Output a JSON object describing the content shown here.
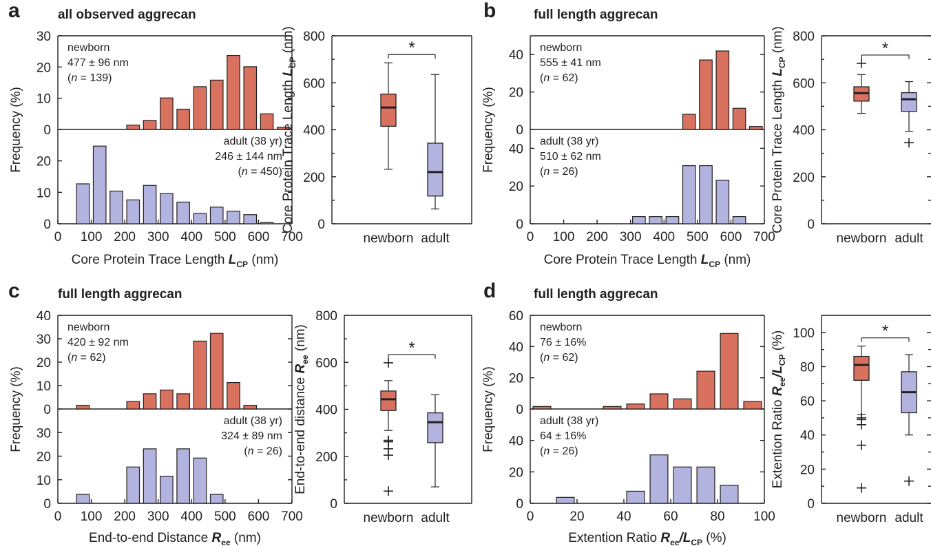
{
  "colors": {
    "newborn": "#d9715f",
    "adult": "#b3b3df",
    "ink": "#231f20"
  },
  "panels": [
    {
      "letter": "a",
      "title": "all observed aggrecan",
      "hist_ylabel": "Frequency (%)",
      "hist_xlabel": "Core Protein Trace Length ",
      "hist_xlabel_sym": "L",
      "hist_xlabel_sub": "CP",
      "hist_xlabel_unit": " (nm)",
      "top_yticks": [
        "0",
        "10",
        "20",
        "30"
      ],
      "bottom_yticks": [
        "0",
        "10",
        "20"
      ],
      "xticks": [
        "0",
        "100",
        "200",
        "300",
        "400",
        "500",
        "600",
        "700"
      ],
      "newborn_note": [
        "newborn",
        "477 ± 96 nm"
      ],
      "newborn_n": "139",
      "adult_note": [
        "adult (38 yr)",
        "246 ± 144 nm"
      ],
      "adult_n": "450",
      "box_ylabel": "Core Protein Trace  Length ",
      "box_ylabel_sym": "L",
      "box_ylabel_sub": "CP",
      "box_ylabel_unit": " (nm)",
      "box_yticks": [
        "0",
        "200",
        "400",
        "600",
        "800"
      ],
      "box_groups": [
        "newborn",
        "adult"
      ],
      "sig_mark": "*"
    },
    {
      "letter": "b",
      "title": "full length aggrecan",
      "hist_ylabel": "Frequency (%)",
      "hist_xlabel": "Core Protein Trace Length ",
      "hist_xlabel_sym": "L",
      "hist_xlabel_sub": "CP",
      "hist_xlabel_unit": " (nm)",
      "top_yticks": [
        "0",
        "20",
        "40"
      ],
      "bottom_yticks": [
        "0",
        "20",
        "40"
      ],
      "xticks": [
        "0",
        "100",
        "200",
        "300",
        "400",
        "500",
        "600",
        "700"
      ],
      "newborn_note": [
        "newborn",
        "555 ± 41 nm"
      ],
      "newborn_n": "62",
      "adult_note": [
        "adult (38 yr)",
        "510 ± 62 nm"
      ],
      "adult_n": "26",
      "box_ylabel": "Core Protein Trace Length ",
      "box_ylabel_sym": "L",
      "box_ylabel_sub": "CP",
      "box_ylabel_unit": " (nm)",
      "box_yticks": [
        "0",
        "200",
        "400",
        "600",
        "800"
      ],
      "box_groups": [
        "newborn",
        "adult"
      ],
      "sig_mark": "*"
    },
    {
      "letter": "c",
      "title": "full length aggrecan",
      "hist_ylabel": "Frequency (%)",
      "hist_xlabel": "End-to-end Distance ",
      "hist_xlabel_sym": "R",
      "hist_xlabel_sub": "ee",
      "hist_xlabel_unit": " (nm)",
      "top_yticks": [
        "0",
        "10",
        "20",
        "30",
        "40"
      ],
      "bottom_yticks": [
        "0",
        "10",
        "20",
        "30"
      ],
      "xticks": [
        "0",
        "100",
        "200",
        "300",
        "400",
        "500",
        "600",
        "700"
      ],
      "newborn_note": [
        "newborn",
        "420 ± 92 nm"
      ],
      "newborn_n": "62",
      "adult_note": [
        "adult (38 yr)",
        "324 ± 89 nm"
      ],
      "adult_n": "26",
      "box_ylabel": "End-to-end distance ",
      "box_ylabel_sym": "R",
      "box_ylabel_sub": "ee",
      "box_ylabel_unit": " (nm)",
      "box_yticks": [
        "0",
        "200",
        "400",
        "600",
        "800"
      ],
      "box_groups": [
        "newborn",
        "adult"
      ],
      "sig_mark": "*"
    },
    {
      "letter": "d",
      "title": "full length aggrecan",
      "hist_ylabel": "Frequency (%)",
      "hist_xlabel": "Extention Ratio ",
      "hist_xlabel_sym": "R",
      "hist_xlabel_sub": "ee",
      "hist_xlabel_sym2": "/L",
      "hist_xlabel_sub2": "CP",
      "hist_xlabel_unit": " (%)",
      "top_yticks": [
        "0",
        "20",
        "40",
        "60"
      ],
      "bottom_yticks": [
        "0",
        "20",
        "40"
      ],
      "xticks": [
        "0",
        "20",
        "40",
        "60",
        "80",
        "100"
      ],
      "newborn_note": [
        "newborn",
        "76 ± 16%"
      ],
      "newborn_n": "62",
      "adult_note": [
        "adult (38 yr)",
        "64 ± 16%"
      ],
      "adult_n": "26",
      "box_ylabel": "Extention Ratio ",
      "box_ylabel_sym": "R",
      "box_ylabel_sub": "ee",
      "box_ylabel_sym2": "/L",
      "box_ylabel_sub2": "CP",
      "box_ylabel_unit": " (%)",
      "box_yticks": [
        "0",
        "20",
        "40",
        "60",
        "80",
        "100"
      ],
      "box_groups": [
        "newborn",
        "adult"
      ],
      "sig_mark": "*"
    }
  ],
  "chart_data": [
    {
      "panel": "a",
      "type": "bar",
      "subplot": "histogram-newborn",
      "xlim": [
        0,
        700
      ],
      "ylim": [
        0,
        30
      ],
      "bin_width": 50,
      "x": [
        75,
        125,
        175,
        225,
        275,
        325,
        375,
        425,
        475,
        525,
        575,
        625,
        675
      ],
      "values": [
        0,
        0,
        0,
        1.4,
        2.9,
        10.1,
        6.5,
        13.7,
        15.8,
        23.7,
        20.1,
        5,
        0.7
      ]
    },
    {
      "panel": "a",
      "type": "bar",
      "subplot": "histogram-adult",
      "xlim": [
        0,
        700
      ],
      "ylim": [
        0,
        30
      ],
      "bin_width": 50,
      "x": [
        75,
        125,
        175,
        225,
        275,
        325,
        375,
        425,
        475,
        525,
        575,
        625,
        675
      ],
      "values": [
        12.7,
        24.7,
        10.4,
        7.6,
        12.2,
        9.6,
        6.9,
        3.3,
        5.3,
        4,
        2.9,
        0.4,
        0
      ]
    },
    {
      "panel": "a",
      "type": "box",
      "subplot": "boxplot",
      "ylim": [
        0,
        800
      ],
      "groups": [
        {
          "name": "newborn",
          "whisker_low": 232,
          "q1": 415,
          "median": 495,
          "q3": 552,
          "whisker_high": 685,
          "outliers": []
        },
        {
          "name": "adult",
          "whisker_low": 63,
          "q1": 118,
          "median": 220,
          "q3": 343,
          "whisker_high": 635,
          "outliers": []
        }
      ],
      "significance": "*"
    },
    {
      "panel": "b",
      "type": "bar",
      "subplot": "histogram-newborn",
      "xlim": [
        0,
        700
      ],
      "ylim": [
        0,
        50
      ],
      "bin_width": 50,
      "x": [
        325,
        375,
        425,
        475,
        525,
        575,
        625,
        675
      ],
      "values": [
        0,
        0,
        0,
        8.1,
        37.1,
        41.9,
        11.3,
        1.6
      ]
    },
    {
      "panel": "b",
      "type": "bar",
      "subplot": "histogram-adult",
      "xlim": [
        0,
        700
      ],
      "ylim": [
        0,
        50
      ],
      "bin_width": 50,
      "x": [
        325,
        375,
        425,
        475,
        525,
        575,
        625,
        675
      ],
      "values": [
        3.8,
        3.8,
        3.8,
        30.8,
        30.8,
        23.1,
        3.8,
        0
      ]
    },
    {
      "panel": "b",
      "type": "box",
      "subplot": "boxplot",
      "ylim": [
        0,
        800
      ],
      "groups": [
        {
          "name": "newborn",
          "whisker_low": 470,
          "q1": 522,
          "median": 556,
          "q3": 583,
          "whisker_high": 635,
          "outliers": [
            683
          ]
        },
        {
          "name": "adult",
          "whisker_low": 393,
          "q1": 478,
          "median": 530,
          "q3": 558,
          "whisker_high": 605,
          "outliers": [
            345
          ]
        }
      ],
      "significance": "*"
    },
    {
      "panel": "c",
      "type": "bar",
      "subplot": "histogram-newborn",
      "xlim": [
        0,
        700
      ],
      "ylim": [
        0,
        40
      ],
      "bin_width": 50,
      "x": [
        75,
        125,
        175,
        225,
        275,
        325,
        375,
        425,
        475,
        525,
        575
      ],
      "values": [
        1.6,
        0,
        0,
        3.2,
        6.5,
        8.1,
        6.5,
        29,
        32.3,
        11.3,
        1.6
      ]
    },
    {
      "panel": "c",
      "type": "bar",
      "subplot": "histogram-adult",
      "xlim": [
        0,
        700
      ],
      "ylim": [
        0,
        40
      ],
      "bin_width": 50,
      "x": [
        75,
        125,
        175,
        225,
        275,
        325,
        375,
        425,
        475,
        525
      ],
      "values": [
        3.8,
        0,
        0,
        15.4,
        23.1,
        11.5,
        23.1,
        19.2,
        3.8,
        0
      ]
    },
    {
      "panel": "c",
      "type": "box",
      "subplot": "boxplot",
      "ylim": [
        0,
        800
      ],
      "groups": [
        {
          "name": "newborn",
          "whisker_low": 310,
          "q1": 395,
          "median": 443,
          "q3": 478,
          "whisker_high": 522,
          "outliers": [
            598,
            268,
            262,
            232,
            205,
            52
          ]
        },
        {
          "name": "adult",
          "whisker_low": 70,
          "q1": 258,
          "median": 345,
          "q3": 385,
          "whisker_high": 462,
          "outliers": []
        }
      ],
      "significance": "*"
    },
    {
      "panel": "d",
      "type": "bar",
      "subplot": "histogram-newborn",
      "xlim": [
        0,
        100
      ],
      "ylim": [
        0,
        60
      ],
      "bin_width": 10,
      "x": [
        5,
        15,
        25,
        35,
        45,
        55,
        65,
        75,
        85,
        95
      ],
      "values": [
        1.6,
        0,
        0,
        1.6,
        3.2,
        9.7,
        6.5,
        24.2,
        48.4,
        4.8
      ]
    },
    {
      "panel": "d",
      "type": "bar",
      "subplot": "histogram-adult",
      "xlim": [
        0,
        100
      ],
      "ylim": [
        0,
        60
      ],
      "bin_width": 10,
      "x": [
        5,
        15,
        25,
        35,
        45,
        55,
        65,
        75,
        85,
        95
      ],
      "values": [
        0,
        3.8,
        0,
        0,
        7.7,
        30.8,
        23.1,
        23.1,
        11.5,
        0
      ]
    },
    {
      "panel": "d",
      "type": "box",
      "subplot": "boxplot",
      "ylim": [
        0,
        110
      ],
      "groups": [
        {
          "name": "newborn",
          "whisker_low": 52,
          "q1": 72,
          "median": 81,
          "q3": 86,
          "whisker_high": 92,
          "outliers": [
            50,
            49,
            46,
            34,
            9
          ]
        },
        {
          "name": "adult",
          "whisker_low": 40,
          "q1": 53,
          "median": 65,
          "q3": 77,
          "whisker_high": 87,
          "outliers": [
            13
          ]
        }
      ],
      "significance": "*"
    }
  ]
}
